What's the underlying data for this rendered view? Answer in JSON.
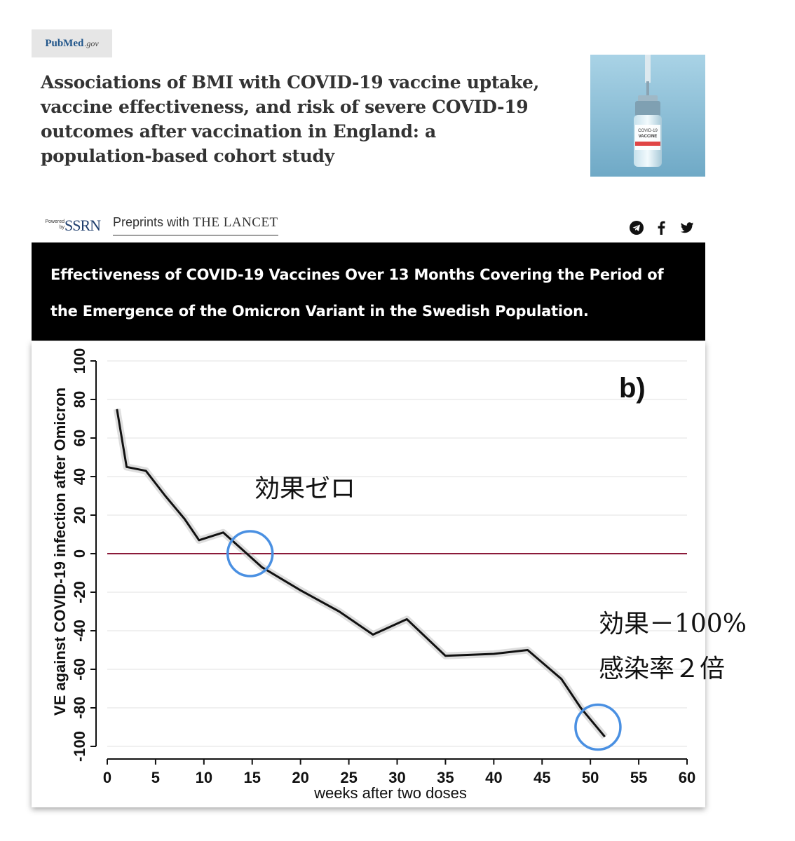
{
  "pubmed": {
    "logo_text": "PubMed",
    "logo_gov": ".gov",
    "title": "Associations of BMI with COVID-19 vaccine uptake, vaccine effectiveness, and risk of severe COVID-19 outcomes after vaccination in England: a population-based cohort study",
    "image_label_line1": "COVID-19",
    "image_label_line2": "VACCINE"
  },
  "ssrn": {
    "powered_text": "Powered by",
    "ssrn_text": "SSRN",
    "preprints_text": "Preprints with ",
    "lancet_text": "THE LANCET",
    "share_icons": [
      "telegram-icon",
      "facebook-icon",
      "twitter-icon"
    ]
  },
  "banner": {
    "title": "Effectiveness of COVID-19 Vaccines Over 13 Months Covering the Period of the Emergence of the Omicron Variant in the Swedish Population."
  },
  "annotations": {
    "panel_label": "b)",
    "zero_effect": "効果ゼロ",
    "minus100_effect": "効果－100%",
    "infection_rate": "感染率２倍"
  },
  "colors": {
    "banner_bg": "#000000",
    "zero_line": "#8b1a3a",
    "circle": "#4a90e2",
    "line": "#111111"
  },
  "chart_data": {
    "type": "line",
    "title": "",
    "xlabel": "weeks after two doses",
    "ylabel": "VE against COVID-19 infection after Omicron",
    "xlim": [
      0,
      60
    ],
    "ylim": [
      -100,
      100
    ],
    "xticks": [
      0,
      5,
      10,
      15,
      20,
      25,
      30,
      35,
      40,
      45,
      50,
      55,
      60
    ],
    "yticks": [
      -100,
      -80,
      -60,
      -40,
      -20,
      0,
      20,
      40,
      60,
      80,
      100
    ],
    "reference_line_y": 0,
    "series": [
      {
        "name": "VE",
        "x": [
          1,
          2,
          4,
          6,
          8,
          9.5,
          12,
          14,
          16,
          18,
          20,
          24,
          27.5,
          31,
          35,
          40,
          43.5,
          47,
          49,
          51.5
        ],
        "y": [
          75,
          45,
          43,
          30,
          18,
          7,
          11,
          2,
          -7,
          -13,
          -19,
          -30,
          -42,
          -34,
          -53,
          -52,
          -50,
          -65,
          -80,
          -95
        ]
      }
    ],
    "highlights": [
      {
        "x": 15,
        "y": 0,
        "label": "効果ゼロ"
      },
      {
        "x": 51,
        "y": -90,
        "label": "効果－100%"
      }
    ]
  }
}
